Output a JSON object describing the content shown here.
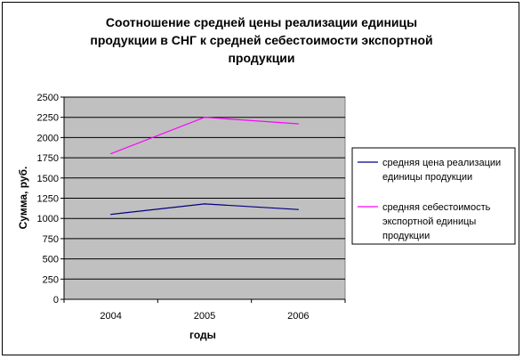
{
  "chart_data": {
    "type": "line",
    "title_lines": [
      "Соотношение средней цены реализации единицы",
      "продукции в СНГ к средней себестоимости экспортной",
      "продукции"
    ],
    "xlabel": "годы",
    "ylabel": "Сумма, руб.",
    "categories": [
      "2004",
      "2005",
      "2006"
    ],
    "ylim": [
      0,
      2500
    ],
    "yticks": [
      "0",
      "250",
      "500",
      "750",
      "1000",
      "1250",
      "1500",
      "1750",
      "2000",
      "2250",
      "2500"
    ],
    "grid": "horizontal",
    "legend_position": "right",
    "plot_background": "#c0c0c0",
    "series": [
      {
        "name": "средняя цена реализации единицы продукции",
        "name_lines": [
          "средняя цена реализации",
          "единицы продукции"
        ],
        "color": "#000080",
        "values": [
          1050,
          1180,
          1110
        ]
      },
      {
        "name": "средняя себестоимость экспортной единицы продукции",
        "name_lines": [
          "средняя себестоимость",
          "экспортной единицы",
          "продукции"
        ],
        "color": "#ff00ff",
        "values": [
          1800,
          2250,
          2170
        ]
      }
    ]
  }
}
